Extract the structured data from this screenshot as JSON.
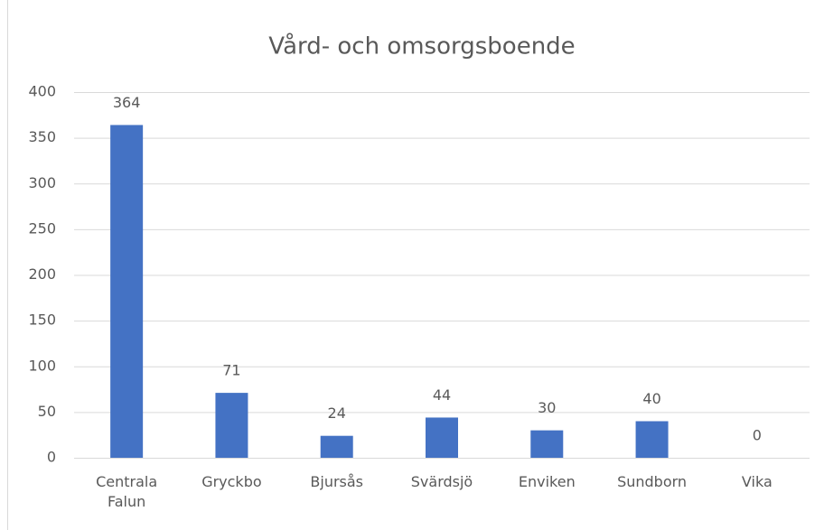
{
  "chart_data": {
    "type": "bar",
    "title": "Vård- och omsorgsboende",
    "categories": [
      "Centrala Falun",
      "Gryckbo",
      "Bjursås",
      "Svärdsjö",
      "Enviken",
      "Sundborn",
      "Vika"
    ],
    "values": [
      364,
      71,
      24,
      44,
      30,
      40,
      0
    ],
    "color": "#4472c4",
    "ylim": [
      0,
      400
    ],
    "yticks": [
      0,
      50,
      100,
      150,
      200,
      250,
      300,
      350,
      400
    ],
    "grid": true
  }
}
